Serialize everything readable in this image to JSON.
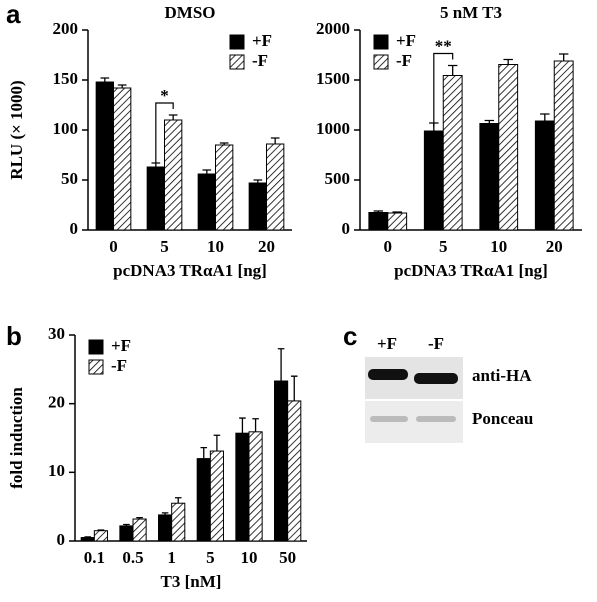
{
  "panels": [
    "a",
    "b",
    "c"
  ],
  "chart_data": [
    {
      "type": "bar",
      "title": "DMSO",
      "ylabel": "RLU (× 1000)",
      "xlabel": "pcDNA3 TRαA1 [ng]",
      "categories": [
        "0",
        "5",
        "10",
        "20"
      ],
      "series": [
        {
          "name": "+F",
          "color": "#000000",
          "hatch": false,
          "values": [
            148,
            63,
            56,
            47
          ],
          "errors": [
            4,
            4,
            4,
            3
          ]
        },
        {
          "name": "-F",
          "color": "#000000",
          "hatch": true,
          "values": [
            142,
            110,
            85,
            86
          ],
          "errors": [
            3,
            5,
            2,
            6
          ]
        }
      ],
      "annotations": [
        {
          "text": "*",
          "category": "5"
        }
      ],
      "ylim": [
        0,
        200
      ],
      "yticks": [
        0,
        50,
        100,
        150,
        200
      ],
      "legend": "upper right"
    },
    {
      "type": "bar",
      "title": "5 nM T3",
      "xlabel": "pcDNA3 TRαA1 [ng]",
      "categories": [
        "0",
        "5",
        "10",
        "20"
      ],
      "series": [
        {
          "name": "+F",
          "color": "#000000",
          "hatch": false,
          "values": [
            175,
            990,
            1065,
            1090
          ],
          "errors": [
            15,
            80,
            30,
            70
          ]
        },
        {
          "name": "-F",
          "color": "#000000",
          "hatch": true,
          "values": [
            170,
            1545,
            1655,
            1690
          ],
          "errors": [
            10,
            100,
            50,
            70
          ]
        }
      ],
      "annotations": [
        {
          "text": "**",
          "category": "5"
        }
      ],
      "ylim": [
        0,
        2000
      ],
      "yticks": [
        0,
        500,
        1000,
        1500,
        2000
      ],
      "legend": "upper left"
    },
    {
      "type": "bar",
      "ylabel": "fold induction",
      "xlabel": "T3 [nM]",
      "categories": [
        "0.1",
        "0.5",
        "1",
        "5",
        "10",
        "50"
      ],
      "series": [
        {
          "name": "+F",
          "color": "#000000",
          "hatch": false,
          "values": [
            0.5,
            2.2,
            3.8,
            12,
            15.7,
            23.3
          ],
          "errors": [
            0.1,
            0.2,
            0.3,
            1.6,
            2.2,
            4.7
          ]
        },
        {
          "name": "-F",
          "color": "#000000",
          "hatch": true,
          "values": [
            1.5,
            3.2,
            5.5,
            13.1,
            15.9,
            20.4
          ],
          "errors": [
            0.1,
            0.2,
            0.8,
            2.3,
            1.9,
            3.6
          ]
        }
      ],
      "ylim": [
        0,
        30
      ],
      "yticks": [
        0,
        10,
        20,
        30
      ],
      "legend": "upper left"
    }
  ],
  "blot": {
    "lanes": [
      "+F",
      "-F"
    ],
    "rows": [
      "anti-HA",
      "Ponceau"
    ]
  }
}
